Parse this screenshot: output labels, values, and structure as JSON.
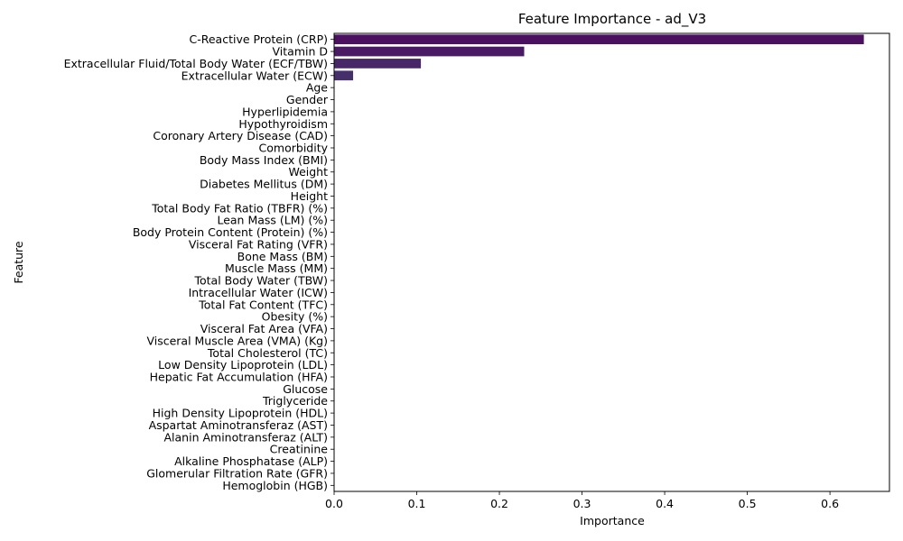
{
  "chart_data": {
    "type": "bar",
    "orientation": "horizontal",
    "title": "Feature Importance - ad_V3",
    "xlabel": "Importance",
    "ylabel": "Feature",
    "xlim": [
      0,
      0.672
    ],
    "xticks": [
      0,
      0.1,
      0.2,
      0.3,
      0.4,
      0.5,
      0.6
    ],
    "xtick_labels": [
      "0.0",
      "0.1",
      "0.2",
      "0.3",
      "0.4",
      "0.5",
      "0.6"
    ],
    "grid": false,
    "legend": "none",
    "categories": [
      "C-Reactive Protein (CRP)",
      "Vitamin D",
      "Extracellular Fluid/Total Body Water (ECF/TBW)",
      "Extracellular Water (ECW)",
      "Age",
      "Gender",
      "Hyperlipidemia",
      "Hypothyroidism",
      "Coronary Artery Disease (CAD)",
      "Comorbidity",
      "Body Mass Index (BMI)",
      "Weight",
      "Diabetes Mellitus (DM)",
      "Height",
      "Total Body Fat Ratio (TBFR) (%)",
      "Lean Mass (LM) (%)",
      "Body Protein Content (Protein) (%)",
      "Visceral Fat Rating (VFR)",
      "Bone Mass (BM)",
      "Muscle Mass (MM)",
      "Total Body Water (TBW)",
      "Intracellular Water (ICW)",
      "Total Fat Content (TFC)",
      "Obesity (%)",
      "Visceral Fat Area (VFA)",
      "Visceral Muscle Area (VMA) (Kg)",
      "Total Cholesterol (TC)",
      "Low Density Lipoprotein (LDL)",
      "Hepatic Fat Accumulation (HFA)",
      "Glucose",
      "Triglyceride",
      "High Density Lipoprotein (HDL)",
      "Aspartat Aminotransferaz (AST)",
      "Alanin Aminotransferaz (ALT)",
      "Creatinine",
      "Alkaline Phosphatase (ALP)",
      "Glomerular Filtration Rate (GFR)",
      "Hemoglobin (HGB)"
    ],
    "values": [
      0.641,
      0.23,
      0.105,
      0.023,
      0,
      0,
      0,
      0,
      0,
      0,
      0,
      0,
      0,
      0,
      0,
      0,
      0,
      0,
      0,
      0,
      0,
      0,
      0,
      0,
      0,
      0,
      0,
      0,
      0,
      0,
      0,
      0,
      0,
      0,
      0,
      0,
      0,
      0
    ],
    "colors": [
      "#4c1060",
      "#4a1b64",
      "#482768",
      "#45306c"
    ]
  }
}
